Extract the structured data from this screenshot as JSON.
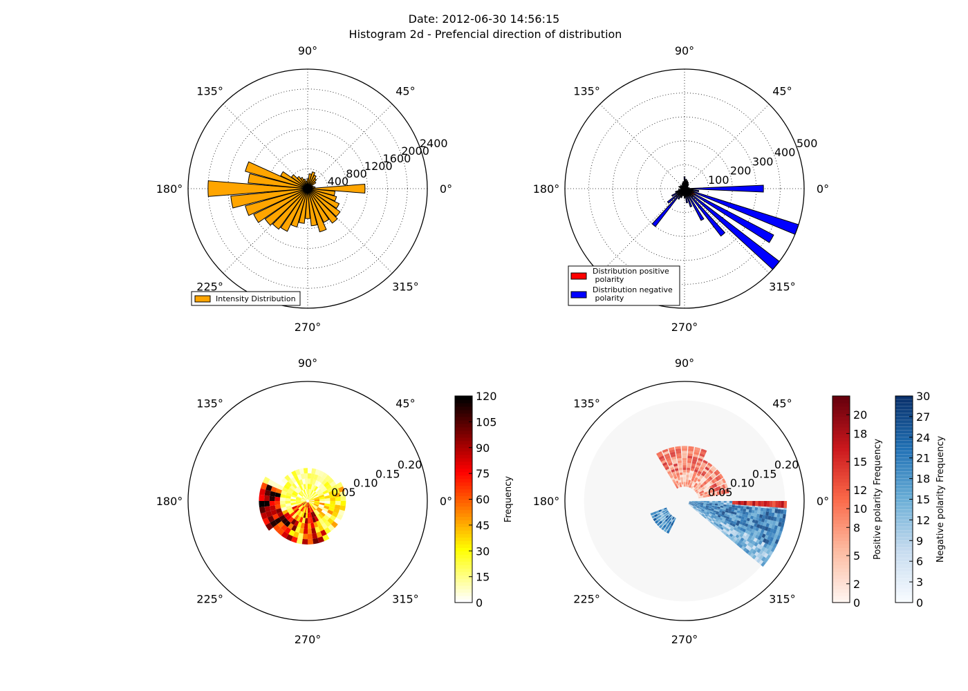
{
  "figure": {
    "title_line1": "Date: 2012-06-30 14:56:15",
    "title_line2": "Histogram 2d - Prefencial direction of distribution"
  },
  "angle_labels": [
    "0°",
    "45°",
    "90°",
    "135°",
    "180°",
    "225°",
    "270°",
    "315°"
  ],
  "colors": {
    "intensity": "#ffa500",
    "positive": "#ff0000",
    "negative": "#0000ff"
  },
  "chart_data": [
    {
      "type": "bar",
      "projection": "polar",
      "panel": "top-left",
      "rlim": [
        0,
        2400
      ],
      "radial_ticks": [
        400,
        800,
        1200,
        1600,
        2000,
        2400
      ],
      "radial_tick_labels": [
        "400",
        "800",
        "1200",
        "1600",
        "2000",
        "2400"
      ],
      "grid": true,
      "legend_position": "lower-left",
      "series": [
        {
          "name": "Intensity Distribution",
          "color": "#ffa500",
          "theta_deg": [
            0,
            10,
            20,
            30,
            40,
            50,
            60,
            70,
            80,
            90,
            100,
            110,
            120,
            130,
            140,
            150,
            160,
            170,
            180,
            190,
            200,
            210,
            220,
            230,
            240,
            250,
            260,
            270,
            280,
            290,
            300,
            310,
            320,
            330,
            340,
            350
          ],
          "values": [
            1150,
            150,
            120,
            100,
            200,
            250,
            300,
            350,
            300,
            200,
            150,
            200,
            250,
            300,
            400,
            600,
            1300,
            1200,
            2000,
            1550,
            1300,
            1200,
            1050,
            1000,
            950,
            800,
            700,
            600,
            750,
            900,
            750,
            850,
            800,
            700,
            600,
            550
          ]
        }
      ]
    },
    {
      "type": "bar",
      "projection": "polar",
      "panel": "top-right",
      "rlim": [
        0,
        500
      ],
      "radial_ticks": [
        100,
        200,
        300,
        400,
        500
      ],
      "radial_tick_labels": [
        "100",
        "200",
        "300",
        "400",
        "500"
      ],
      "grid": true,
      "legend_position": "lower-left",
      "series": [
        {
          "name": "Distribution positive\n polarity",
          "color": "#ff0000",
          "theta_deg": [
            0,
            10,
            20,
            30,
            40,
            50,
            60,
            70,
            80,
            90,
            100,
            110,
            120,
            130,
            140,
            150,
            160,
            170,
            180,
            190,
            200,
            210,
            220,
            230,
            240,
            250,
            260,
            270,
            280,
            290,
            300,
            310,
            320,
            330,
            340,
            350
          ],
          "values": [
            15,
            10,
            12,
            15,
            20,
            25,
            30,
            30,
            25,
            20,
            15,
            15,
            10,
            10,
            10,
            15,
            15,
            15,
            10,
            10,
            15,
            15,
            20,
            20,
            20,
            20,
            20,
            25,
            30,
            30,
            35,
            40,
            45,
            50,
            40,
            35
          ]
        },
        {
          "name": "Distribution negative\n polarity",
          "color": "#0000ff",
          "theta_deg": [
            0,
            10,
            20,
            30,
            40,
            50,
            60,
            70,
            80,
            90,
            100,
            110,
            120,
            130,
            140,
            150,
            160,
            170,
            180,
            190,
            200,
            210,
            220,
            230,
            240,
            250,
            260,
            270,
            280,
            290,
            300,
            310,
            320,
            330,
            340,
            350
          ],
          "values": [
            330,
            20,
            15,
            15,
            20,
            25,
            30,
            35,
            40,
            50,
            30,
            25,
            20,
            15,
            20,
            20,
            25,
            20,
            15,
            25,
            40,
            60,
            90,
            200,
            50,
            40,
            30,
            40,
            60,
            80,
            150,
            250,
            500,
            420,
            500,
            60
          ]
        }
      ]
    },
    {
      "type": "heatmap",
      "projection": "polar",
      "panel": "bottom-left",
      "rlim": [
        0,
        0.25
      ],
      "radial_ticks": [
        0.05,
        0.1,
        0.15,
        0.2
      ],
      "radial_tick_labels": [
        "0.05",
        "0.10",
        "0.15",
        "0.20"
      ],
      "colormap": "hot_r",
      "colorbar": {
        "label": "Frequency",
        "range": [
          0,
          120
        ],
        "ticks": [
          "0",
          "15",
          "30",
          "45",
          "60",
          "75",
          "90",
          "105",
          "120"
        ]
      },
      "extent": {
        "theta_deg": [
          0,
          360
        ],
        "r": [
          0,
          0.11
        ]
      }
    },
    {
      "type": "heatmap",
      "projection": "polar",
      "panel": "bottom-right",
      "rlim": [
        0,
        0.25
      ],
      "radial_ticks": [
        0.05,
        0.1,
        0.15,
        0.2
      ],
      "radial_tick_labels": [
        "0.05",
        "0.10",
        "0.15",
        "0.20"
      ],
      "layers": [
        {
          "name": "Positive polarity Frequency",
          "colormap": "Reds",
          "colorbar": {
            "label": "Positive polarity Frequency",
            "range": [
              0,
              22
            ],
            "ticks": [
              "0",
              "2",
              "5",
              "8",
              "10",
              "12",
              "15",
              "18",
              "20"
            ]
          }
        },
        {
          "name": "Negative polarity Frequency",
          "colormap": "Blues",
          "colorbar": {
            "label": "Negative polarity Frequency",
            "range": [
              0,
              30
            ],
            "ticks": [
              "0",
              "3",
              "6",
              "9",
              "12",
              "15",
              "18",
              "21",
              "24",
              "27",
              "30"
            ]
          }
        }
      ]
    }
  ]
}
